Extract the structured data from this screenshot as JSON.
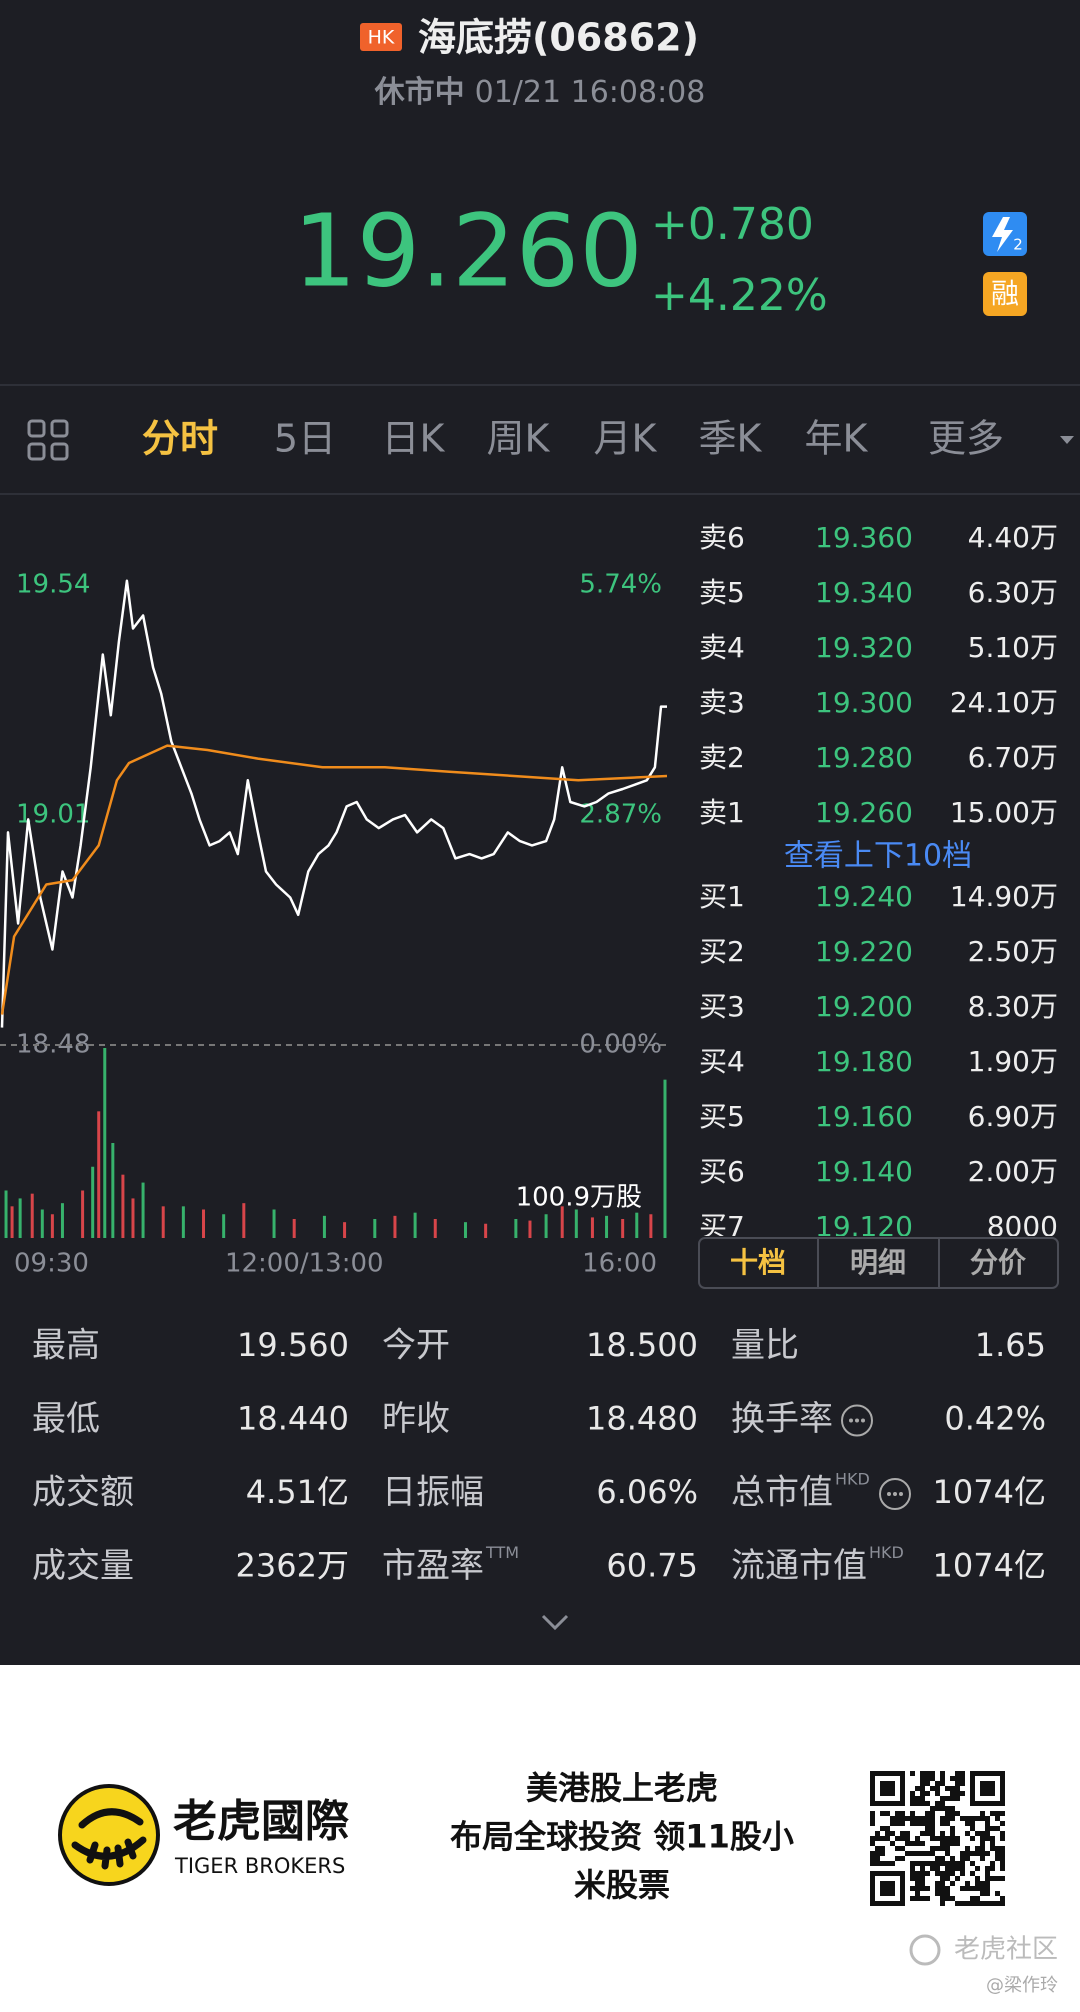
{
  "header": {
    "market_badge": "HK",
    "title": "海底捞(06862)",
    "status": "休市中",
    "datetime": "01/21 16:08:08"
  },
  "quote": {
    "price": "19.260",
    "change": "+0.780",
    "change_pct": "+4.22%",
    "margin_badge": "融"
  },
  "tabs": {
    "items": [
      "分时",
      "5日",
      "日K",
      "周K",
      "月K",
      "季K",
      "年K",
      "更多"
    ],
    "active": 0
  },
  "chart_data": [
    {
      "type": "line",
      "xlim": [
        0,
        330
      ],
      "ylim": [
        18.48,
        19.72
      ],
      "yticks": [
        19.54,
        19.01,
        18.48
      ],
      "y2lim": [
        0,
        6.71
      ],
      "y2ticks": [
        {
          "value": 5.74,
          "label": "5.74%"
        },
        {
          "value": 2.87,
          "label": "2.87%"
        },
        {
          "value": 0,
          "label": "0.00%"
        }
      ],
      "series": [
        {
          "color": "#ffffff",
          "x": [
            0,
            3,
            8,
            13,
            19,
            25,
            30,
            35,
            39,
            44,
            50,
            54,
            58,
            62,
            65,
            70,
            75,
            79,
            84,
            89,
            94,
            98,
            103,
            108,
            113,
            117,
            122,
            127,
            131,
            136,
            143,
            147,
            152,
            157,
            162,
            166,
            171,
            176,
            181,
            187,
            194,
            200,
            206,
            213,
            219,
            225,
            232,
            238,
            244,
            251,
            257,
            263,
            270,
            274,
            278,
            282,
            289,
            295,
            301,
            308,
            314,
            320,
            324,
            327,
            330
          ],
          "values": [
            18.52,
            18.97,
            18.76,
            19.0,
            18.82,
            18.7,
            18.88,
            18.82,
            18.94,
            19.12,
            19.38,
            19.24,
            19.41,
            19.55,
            19.44,
            19.47,
            19.35,
            19.29,
            19.18,
            19.12,
            19.06,
            19.0,
            18.94,
            18.95,
            18.97,
            18.92,
            19.09,
            18.97,
            18.88,
            18.85,
            18.82,
            18.78,
            18.88,
            18.92,
            18.94,
            18.97,
            19.03,
            19.04,
            19.0,
            18.98,
            19.0,
            19.01,
            18.97,
            19.0,
            18.98,
            18.91,
            18.92,
            18.91,
            18.92,
            18.97,
            18.95,
            18.94,
            18.95,
            19.0,
            19.12,
            19.04,
            19.03,
            19.04,
            19.06,
            19.07,
            19.08,
            19.09,
            19.12,
            19.26,
            19.26
          ]
        },
        {
          "color": "#f08c1c",
          "x": [
            0,
            6,
            22,
            35,
            48,
            57,
            63,
            82,
            102,
            127,
            159,
            190,
            222,
            254,
            286,
            330
          ],
          "values": [
            18.55,
            18.73,
            18.85,
            18.86,
            18.94,
            19.09,
            19.13,
            19.17,
            19.16,
            19.14,
            19.12,
            19.12,
            19.11,
            19.1,
            19.09,
            19.1
          ]
        }
      ]
    },
    {
      "type": "bar",
      "xlim": [
        0,
        330
      ],
      "ylim": [
        0,
        120
      ],
      "label": "100.9万股",
      "xticks": [
        {
          "value": 0,
          "label": "09:30"
        },
        {
          "value": 150,
          "label": "12:00/13:00"
        },
        {
          "value": 330,
          "label": "16:00"
        }
      ],
      "series": [
        {
          "color": "#37b26c",
          "x": [
            2,
            9,
            20,
            30,
            45,
            51,
            55,
            70,
            90,
            110,
            135,
            160,
            185,
            205,
            230,
            255,
            270,
            285,
            300,
            315,
            329
          ],
          "values": [
            30,
            25,
            18,
            22,
            45,
            120,
            60,
            35,
            20,
            15,
            18,
            14,
            12,
            16,
            10,
            12,
            15,
            18,
            14,
            16,
            100
          ]
        },
        {
          "color": "#d8454a",
          "x": [
            5,
            15,
            25,
            40,
            48,
            60,
            65,
            80,
            100,
            120,
            145,
            170,
            195,
            215,
            240,
            262,
            278,
            293,
            308,
            322
          ],
          "values": [
            20,
            28,
            15,
            30,
            80,
            40,
            25,
            20,
            18,
            22,
            12,
            10,
            14,
            12,
            9,
            11,
            20,
            13,
            12,
            15
          ]
        }
      ]
    }
  ],
  "order_book": {
    "asks": [
      {
        "label": "卖6",
        "price": "19.360",
        "volume": "4.40万"
      },
      {
        "label": "卖5",
        "price": "19.340",
        "volume": "6.30万"
      },
      {
        "label": "卖4",
        "price": "19.320",
        "volume": "5.10万"
      },
      {
        "label": "卖3",
        "price": "19.300",
        "volume": "24.10万"
      },
      {
        "label": "卖2",
        "price": "19.280",
        "volume": "6.70万"
      },
      {
        "label": "卖1",
        "price": "19.260",
        "volume": "15.00万"
      }
    ],
    "toggle": "查看上下10档",
    "bids": [
      {
        "label": "买1",
        "price": "19.240",
        "volume": "14.90万"
      },
      {
        "label": "买2",
        "price": "19.220",
        "volume": "2.50万"
      },
      {
        "label": "买3",
        "price": "19.200",
        "volume": "8.30万"
      },
      {
        "label": "买4",
        "price": "19.180",
        "volume": "1.90万"
      },
      {
        "label": "买5",
        "price": "19.160",
        "volume": "6.90万"
      },
      {
        "label": "买6",
        "price": "19.140",
        "volume": "2.00万"
      },
      {
        "label": "买7",
        "price": "19.120",
        "volume": "8000"
      }
    ],
    "tabs": [
      "十档",
      "明细",
      "分价"
    ]
  },
  "stats": [
    [
      {
        "label": "最高",
        "value": "19.560"
      },
      {
        "label": "今开",
        "value": "18.500"
      },
      {
        "label": "量比",
        "value": "1.65"
      }
    ],
    [
      {
        "label": "最低",
        "value": "18.440"
      },
      {
        "label": "昨收",
        "value": "18.480"
      },
      {
        "label": "换手率",
        "value": "0.42%",
        "icon": true
      }
    ],
    [
      {
        "label": "成交额",
        "value": "4.51亿"
      },
      {
        "label": "日振幅",
        "value": "6.06%"
      },
      {
        "label": "总市值",
        "sup": "HKD",
        "value": "1074亿",
        "icon": true
      }
    ],
    [
      {
        "label": "成交量",
        "value": "2362万"
      },
      {
        "label": "市盈率",
        "sup": "TTM",
        "value": "60.75"
      },
      {
        "label": "流通市值",
        "sup": "HKD",
        "value": "1074亿"
      }
    ]
  ],
  "ad": {
    "brand_cn": "老虎國際",
    "brand_en": "TIGER BROKERS",
    "slogan": [
      "美港股上老虎",
      "布局全球投资 领11股小",
      "米股票"
    ]
  },
  "watermark": {
    "community": "老虎社区",
    "author": "@梁作玲"
  }
}
